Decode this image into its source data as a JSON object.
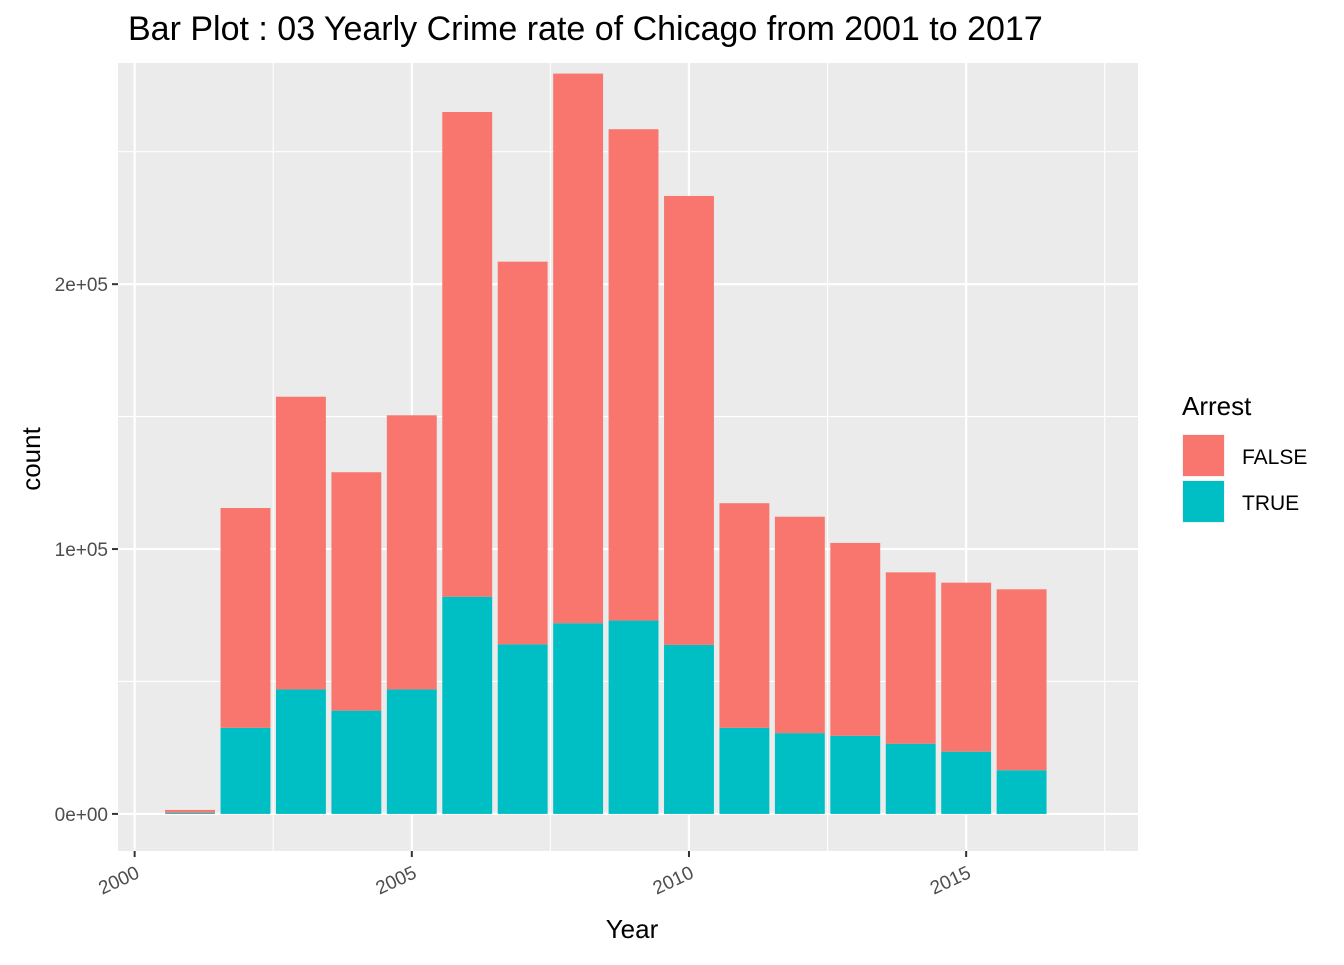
{
  "chart_data": {
    "type": "bar",
    "stacked": true,
    "title": "Bar Plot : 03 Yearly Crime rate of Chicago from 2001 to 2017",
    "xlabel": "Year",
    "ylabel": "count",
    "x": [
      2001,
      2002,
      2003,
      2004,
      2005,
      2006,
      2007,
      2008,
      2009,
      2010,
      2011,
      2012,
      2013,
      2014,
      2015,
      2016
    ],
    "xlim": [
      1999.7,
      2018.1
    ],
    "ylim": [
      -14000,
      283500
    ],
    "x_ticks": [
      2000,
      2005,
      2010,
      2015
    ],
    "x_tick_labels": [
      "2000",
      "2005",
      "2010",
      "2015"
    ],
    "y_ticks": [
      0,
      100000,
      200000
    ],
    "y_tick_labels": [
      "0e+00",
      "1e+05",
      "2e+05"
    ],
    "grid": true,
    "background": "#EBEBEB",
    "legend": {
      "title": "Arrest",
      "position": "right"
    },
    "series": [
      {
        "name": "TRUE",
        "color": "#00BFC4",
        "values": [
          400,
          32500,
          47000,
          39000,
          47000,
          82000,
          64000,
          72000,
          73000,
          63800,
          32500,
          30500,
          29500,
          26500,
          23500,
          16500
        ]
      },
      {
        "name": "FALSE",
        "color": "#F8766D",
        "values": [
          1100,
          83000,
          110500,
          90000,
          103500,
          183000,
          144500,
          207500,
          185500,
          169500,
          84800,
          81700,
          72800,
          64700,
          63800,
          68300
        ]
      }
    ]
  }
}
